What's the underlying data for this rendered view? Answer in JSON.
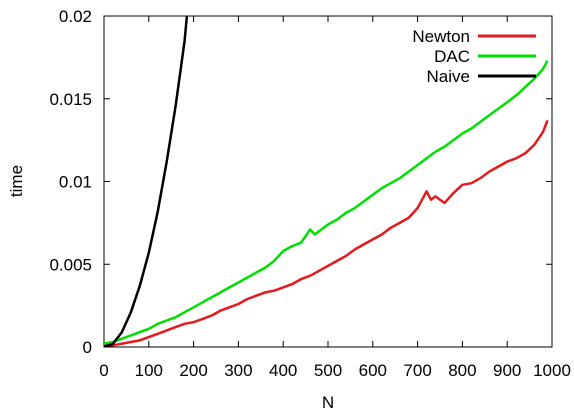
{
  "chart_data": {
    "type": "line",
    "title": "",
    "xlabel": "N",
    "ylabel": "time",
    "xlim": [
      0,
      1000
    ],
    "ylim": [
      0,
      0.02
    ],
    "xticks": [
      0,
      100,
      200,
      300,
      400,
      500,
      600,
      700,
      800,
      900,
      1000
    ],
    "xtick_labels": [
      "0",
      "100",
      "200",
      "300",
      "400",
      "500",
      "600",
      "700",
      "800",
      "900",
      "1000"
    ],
    "yticks": [
      0,
      0.005,
      0.01,
      0.015,
      0.02
    ],
    "ytick_labels": [
      "0",
      "0.005",
      "0.01",
      "0.015",
      "0.02"
    ],
    "grid": false,
    "legend_position": "top-right",
    "series": [
      {
        "name": "Newton",
        "color": "#e41a1c",
        "x": [
          0,
          20,
          40,
          60,
          80,
          100,
          120,
          140,
          160,
          180,
          200,
          220,
          240,
          260,
          280,
          300,
          320,
          340,
          360,
          380,
          400,
          420,
          440,
          460,
          480,
          500,
          520,
          540,
          560,
          580,
          600,
          620,
          640,
          660,
          680,
          700,
          720,
          730,
          740,
          760,
          780,
          800,
          820,
          840,
          860,
          880,
          900,
          920,
          940,
          960,
          980,
          990
        ],
        "y": [
          0.0001,
          0.0001,
          0.0002,
          0.0003,
          0.0004,
          0.0006,
          0.0008,
          0.001,
          0.0012,
          0.0014,
          0.0015,
          0.0017,
          0.0019,
          0.0022,
          0.0024,
          0.0026,
          0.0029,
          0.0031,
          0.0033,
          0.0034,
          0.0036,
          0.0038,
          0.0041,
          0.0043,
          0.0046,
          0.0049,
          0.0052,
          0.0055,
          0.0059,
          0.0062,
          0.0065,
          0.0068,
          0.0072,
          0.0075,
          0.0078,
          0.0084,
          0.0094,
          0.0089,
          0.0091,
          0.0087,
          0.0093,
          0.0098,
          0.0099,
          0.0102,
          0.0106,
          0.0109,
          0.0112,
          0.0114,
          0.0117,
          0.0122,
          0.013,
          0.0137
        ]
      },
      {
        "name": "DAC",
        "color": "#00e000",
        "x": [
          0,
          20,
          40,
          60,
          80,
          100,
          120,
          140,
          160,
          180,
          200,
          220,
          240,
          260,
          280,
          300,
          320,
          340,
          360,
          380,
          400,
          420,
          440,
          460,
          470,
          480,
          500,
          520,
          540,
          560,
          580,
          600,
          620,
          640,
          660,
          680,
          700,
          720,
          740,
          760,
          780,
          800,
          820,
          840,
          860,
          880,
          900,
          920,
          940,
          960,
          980,
          990
        ],
        "y": [
          0.0002,
          0.0003,
          0.0005,
          0.0007,
          0.0009,
          0.0011,
          0.0014,
          0.0016,
          0.0018,
          0.0021,
          0.0024,
          0.0027,
          0.003,
          0.0033,
          0.0036,
          0.0039,
          0.0042,
          0.0045,
          0.0048,
          0.0052,
          0.0058,
          0.0061,
          0.0063,
          0.0071,
          0.0068,
          0.007,
          0.0074,
          0.0077,
          0.0081,
          0.0084,
          0.0088,
          0.0092,
          0.0096,
          0.0099,
          0.0102,
          0.0106,
          0.011,
          0.0114,
          0.0118,
          0.0121,
          0.0125,
          0.0129,
          0.0132,
          0.0136,
          0.014,
          0.0144,
          0.0148,
          0.0152,
          0.0157,
          0.0162,
          0.0168,
          0.0173
        ]
      },
      {
        "name": "Naive",
        "color": "#000000",
        "x": [
          0,
          20,
          40,
          60,
          80,
          100,
          120,
          140,
          160,
          180,
          185
        ],
        "y": [
          0,
          0.0002,
          0.0009,
          0.0021,
          0.0037,
          0.0057,
          0.0082,
          0.0112,
          0.0146,
          0.0185,
          0.02
        ]
      }
    ]
  }
}
